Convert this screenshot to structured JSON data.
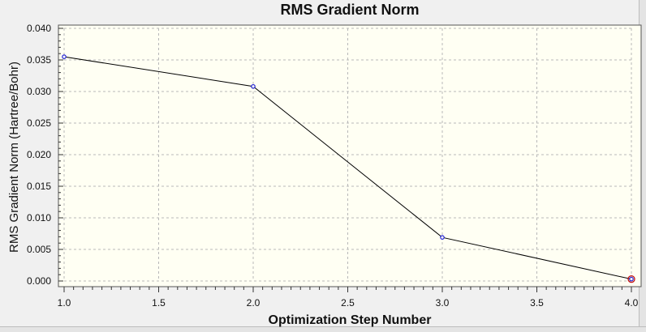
{
  "chart_data": {
    "type": "line",
    "title": "RMS Gradient Norm",
    "xlabel": "Optimization Step Number",
    "ylabel": "RMS Gradient Norm (Hartree/Bohr)",
    "xlim": [
      1.0,
      4.0
    ],
    "ylim": [
      0.0,
      0.04
    ],
    "x_ticks": [
      "1.0",
      "1.5",
      "2.0",
      "2.5",
      "3.0",
      "3.5",
      "4.0"
    ],
    "y_ticks": [
      "0.000",
      "0.005",
      "0.010",
      "0.015",
      "0.020",
      "0.025",
      "0.030",
      "0.035",
      "0.040"
    ],
    "grid": true,
    "series": [
      {
        "x": [
          1,
          2,
          3,
          4
        ],
        "y": [
          0.0355,
          0.0308,
          0.0069,
          0.0003
        ]
      }
    ],
    "colors": {
      "plot_background": "#fffff3",
      "line": "#000000",
      "marker": "#2020d8",
      "highlight_marker": "#c01010"
    }
  }
}
